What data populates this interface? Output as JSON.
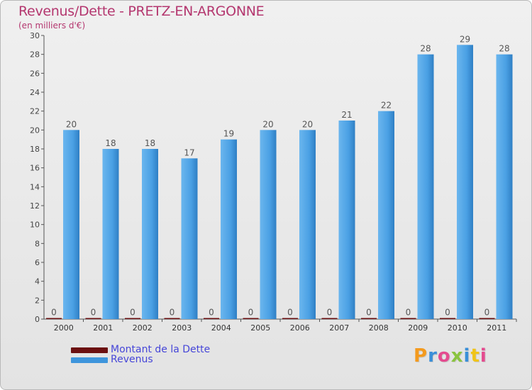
{
  "header": {
    "title": "Revenus/Dette - PRETZ-EN-ARGONNE",
    "subtitle": "(en milliers d'€)"
  },
  "colors": {
    "title": "#b4376f",
    "debt": "#6b0f10",
    "revenue": "#3e95dc",
    "legend_text": "#4646d8",
    "axis": "#555555"
  },
  "legend": {
    "debt_label": "Montant de la Dette",
    "revenue_label": "Revenus"
  },
  "logo": {
    "letters": [
      "P",
      "r",
      "o",
      "x",
      "i",
      "t",
      "i"
    ]
  },
  "chart_data": {
    "type": "bar",
    "title": "Revenus/Dette - PRETZ-EN-ARGONNE",
    "ylabel": "(en milliers d'€)",
    "xlabel": "",
    "categories": [
      "2000",
      "2001",
      "2002",
      "2003",
      "2004",
      "2005",
      "2006",
      "2007",
      "2008",
      "2009",
      "2010",
      "2011"
    ],
    "series": [
      {
        "name": "Montant de la Dette",
        "values": [
          0,
          0,
          0,
          0,
          0,
          0,
          0,
          0,
          0,
          0,
          0,
          0
        ]
      },
      {
        "name": "Revenus",
        "values": [
          20,
          18,
          18,
          17,
          19,
          20,
          20,
          21,
          22,
          28,
          29,
          28
        ]
      }
    ],
    "ylim": [
      0,
      30
    ],
    "yticks": [
      0,
      2,
      4,
      6,
      8,
      10,
      12,
      14,
      16,
      18,
      20,
      22,
      24,
      26,
      28,
      30
    ],
    "grid": false,
    "legend_position": "bottom-left"
  }
}
